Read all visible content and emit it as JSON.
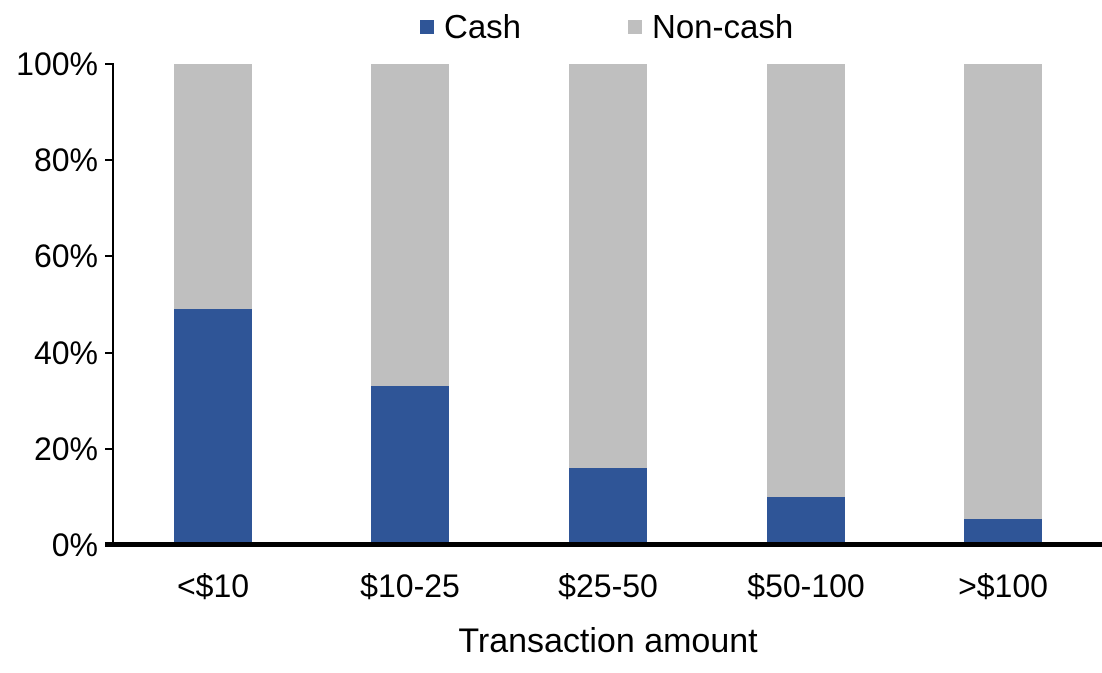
{
  "chart_data": {
    "type": "bar",
    "stacked": true,
    "orientation": "vertical",
    "title": "",
    "xlabel": "Transaction amount",
    "ylabel": "",
    "categories": [
      "<$10",
      "$10-25",
      "$25-50",
      "$50-100",
      ">$100"
    ],
    "series": [
      {
        "name": "Cash",
        "color": "#2F5597",
        "values": [
          49,
          33,
          16,
          10,
          5.5
        ]
      },
      {
        "name": "Non-cash",
        "color": "#BFBFBF",
        "values": [
          51,
          67,
          84,
          90,
          94.5
        ]
      }
    ],
    "ylim": [
      0,
      100
    ],
    "ytick_labels": [
      "0%",
      "20%",
      "40%",
      "60%",
      "80%",
      "100%"
    ],
    "ytick_values": [
      0,
      20,
      40,
      60,
      80,
      100
    ],
    "grid": false,
    "legend_position": "top",
    "axis_color": "#000000",
    "background_color": "#FFFFFF"
  }
}
